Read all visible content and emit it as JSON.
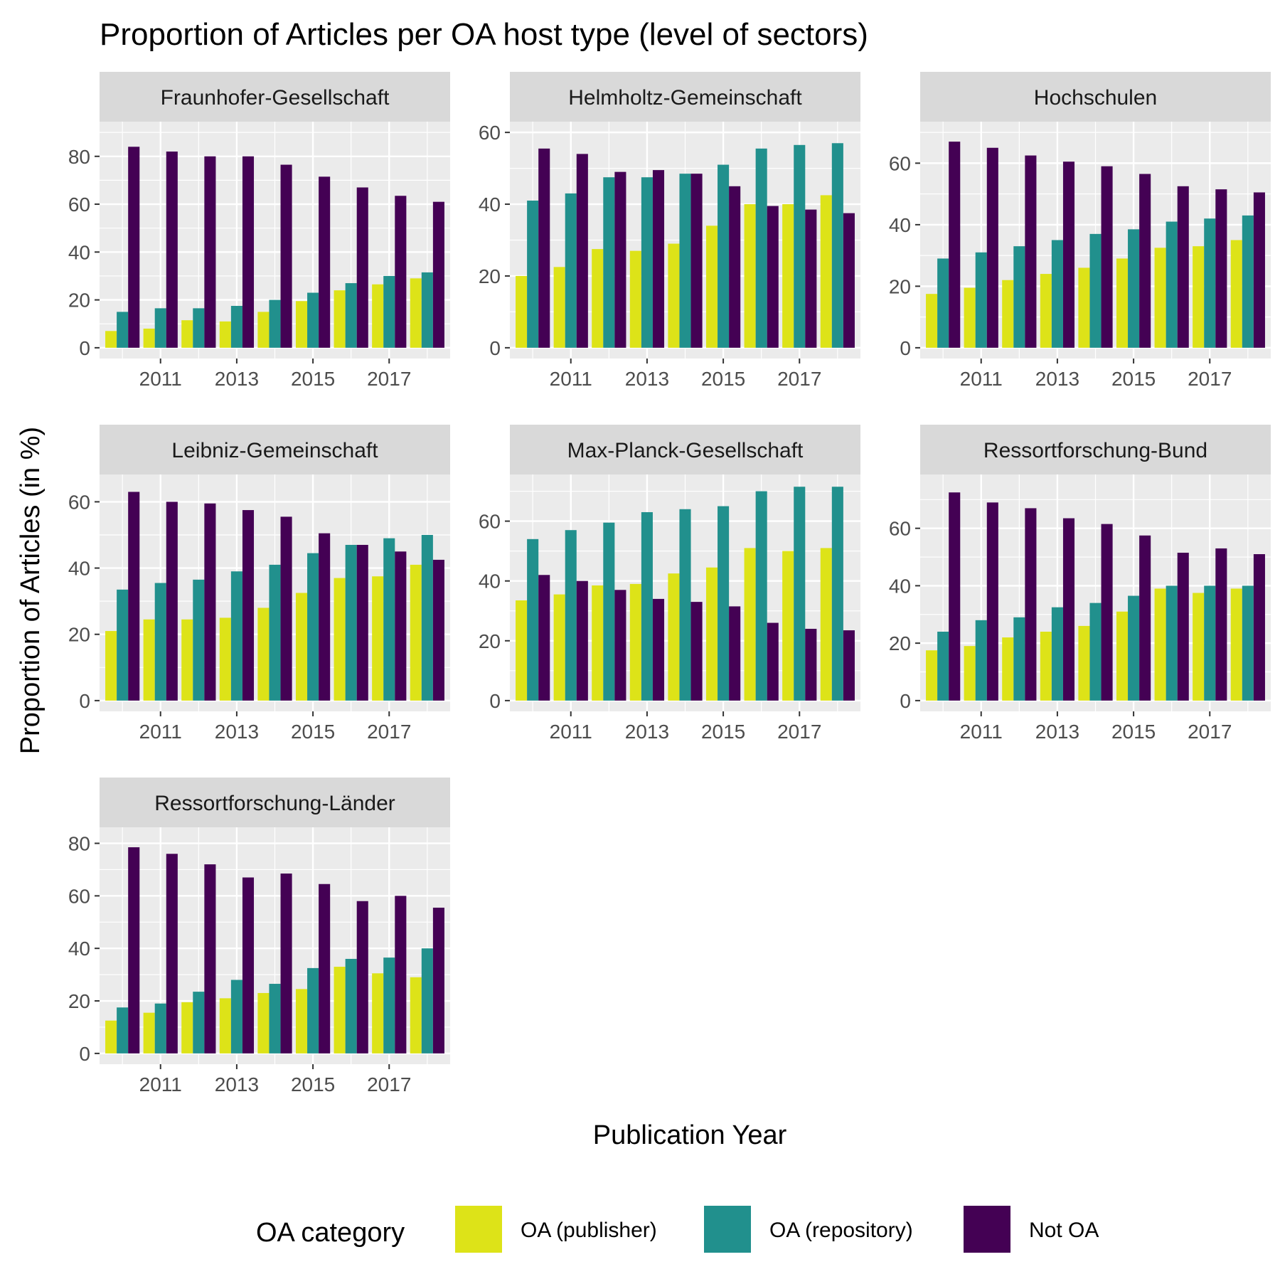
{
  "chart_data": {
    "type": "bar",
    "title": "Proportion of Articles per OA host type (level of sectors)",
    "xlabel": "Publication Year",
    "ylabel": "Proportion of Articles (in %)",
    "x": [
      2010,
      2011,
      2012,
      2013,
      2014,
      2015,
      2016,
      2017,
      2018
    ],
    "x_tick_labels": [
      "2011",
      "2013",
      "2015",
      "2017"
    ],
    "x_tick_values": [
      2011,
      2013,
      2015,
      2017
    ],
    "legend": {
      "title": "OA category",
      "position": "bottom",
      "entries": [
        "OA (publisher)",
        "OA (repository)",
        "Not OA"
      ]
    },
    "colors": {
      "OA (publisher)": "#dde318",
      "OA (repository)": "#21908d",
      "Not OA": "#440154",
      "panel_background": "#ebebeb",
      "strip_background": "#d9d9d9",
      "gridline": "#ffffff"
    },
    "grid": true,
    "facets": [
      {
        "name": "Fraunhofer-Gesellschaft",
        "ylim": [
          0,
          90
        ],
        "y_ticks": [
          0,
          20,
          40,
          60,
          80
        ],
        "series": [
          {
            "name": "OA (publisher)",
            "values": [
              7,
              8,
              11.5,
              11,
              15,
              19.5,
              24,
              26.5,
              29
            ]
          },
          {
            "name": "OA (repository)",
            "values": [
              15,
              16.5,
              16.5,
              17.5,
              20,
              23,
              27,
              30,
              31.5
            ]
          },
          {
            "name": "Not OA",
            "values": [
              84,
              82,
              80,
              80,
              76.5,
              71.5,
              67,
              63.5,
              61
            ]
          }
        ]
      },
      {
        "name": "Helmholtz-Gemeinschaft",
        "ylim": [
          0,
          60
        ],
        "y_ticks": [
          0,
          20,
          40,
          60
        ],
        "series": [
          {
            "name": "OA (publisher)",
            "values": [
              20,
              22.5,
              27.5,
              27,
              29,
              34,
              40,
              40,
              42.5
            ]
          },
          {
            "name": "OA (repository)",
            "values": [
              41,
              43,
              47.5,
              47.5,
              48.5,
              51,
              55.5,
              56.5,
              57
            ]
          },
          {
            "name": "Not OA",
            "values": [
              55.5,
              54,
              49,
              49.5,
              48.5,
              45,
              39.5,
              38.5,
              37.5
            ]
          }
        ]
      },
      {
        "name": "Hochschulen",
        "ylim": [
          0,
          70
        ],
        "y_ticks": [
          0,
          20,
          40,
          60
        ],
        "series": [
          {
            "name": "OA (publisher)",
            "values": [
              17.5,
              19.5,
              22,
              24,
              26,
              29,
              32.5,
              33,
              35
            ]
          },
          {
            "name": "OA (repository)",
            "values": [
              29,
              31,
              33,
              35,
              37,
              38.5,
              41,
              42,
              43
            ]
          },
          {
            "name": "Not OA",
            "values": [
              67,
              65,
              62.5,
              60.5,
              59,
              56.5,
              52.5,
              51.5,
              50.5
            ]
          }
        ]
      },
      {
        "name": "Leibniz-Gemeinschaft",
        "ylim": [
          0,
          65
        ],
        "y_ticks": [
          0,
          20,
          40,
          60
        ],
        "series": [
          {
            "name": "OA (publisher)",
            "values": [
              21,
              24.5,
              24.5,
              25,
              28,
              32.5,
              37,
              37.5,
              41
            ]
          },
          {
            "name": "OA (repository)",
            "values": [
              33.5,
              35.5,
              36.5,
              39,
              41,
              44.5,
              47,
              49,
              50
            ]
          },
          {
            "name": "Not OA",
            "values": [
              63,
              60,
              59.5,
              57.5,
              55.5,
              50.5,
              47,
              45,
              42.5
            ]
          }
        ]
      },
      {
        "name": "Max-Planck-Gesellschaft",
        "ylim": [
          0,
          72
        ],
        "y_ticks": [
          0,
          20,
          40,
          60
        ],
        "series": [
          {
            "name": "OA (publisher)",
            "values": [
              33.5,
              35.5,
              38.5,
              39,
              42.5,
              44.5,
              51,
              50,
              51
            ]
          },
          {
            "name": "OA (repository)",
            "values": [
              54,
              57,
              59.5,
              63,
              64,
              65,
              70,
              71.5,
              71.5
            ]
          },
          {
            "name": "Not OA",
            "values": [
              42,
              40,
              37,
              34,
              33,
              31.5,
              26,
              24,
              23.5
            ]
          }
        ]
      },
      {
        "name": "Ressortforschung-Bund",
        "ylim": [
          0,
          75
        ],
        "y_ticks": [
          0,
          20,
          40,
          60
        ],
        "series": [
          {
            "name": "OA (publisher)",
            "values": [
              17.5,
              19,
              22,
              24,
              26,
              31,
              39,
              37.5,
              39
            ]
          },
          {
            "name": "OA (repository)",
            "values": [
              24,
              28,
              29,
              32.5,
              34,
              36.5,
              40,
              40,
              40
            ]
          },
          {
            "name": "Not OA",
            "values": [
              72.5,
              69,
              67,
              63.5,
              61.5,
              57.5,
              51.5,
              53,
              51
            ]
          }
        ]
      },
      {
        "name": "Ressortforschung-Länder",
        "ylim": [
          0,
          82
        ],
        "y_ticks": [
          0,
          20,
          40,
          60,
          80
        ],
        "series": [
          {
            "name": "OA (publisher)",
            "values": [
              12.5,
              15.5,
              19.5,
              21,
              23,
              24.5,
              33,
              30.5,
              29
            ]
          },
          {
            "name": "OA (repository)",
            "values": [
              17.5,
              19,
              23.5,
              28,
              26.5,
              32.5,
              36,
              36.5,
              40
            ]
          },
          {
            "name": "Not OA",
            "values": [
              78.5,
              76,
              72,
              67,
              68.5,
              64.5,
              58,
              60,
              55.5
            ]
          }
        ]
      }
    ]
  }
}
